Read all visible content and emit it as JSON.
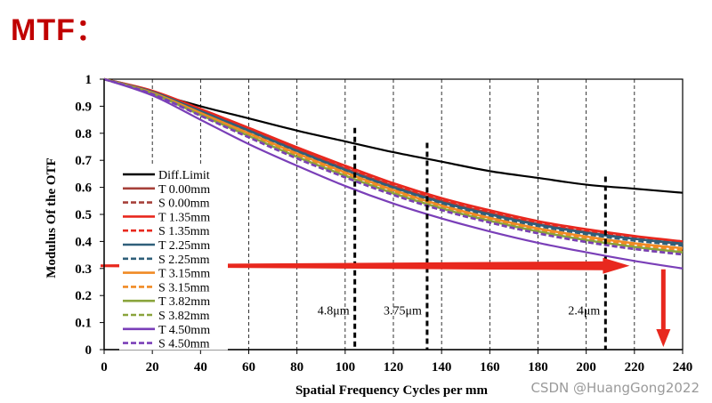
{
  "page": {
    "heading": "MTF：",
    "watermark": "CSDN @HuangGong2022"
  },
  "chart_data": {
    "type": "line",
    "title": "",
    "xlabel": "Spatial Frequency Cycles per mm",
    "ylabel": "Modulus Of the OTF",
    "xlim": [
      0,
      240
    ],
    "ylim": [
      0,
      1
    ],
    "xticks": [
      0,
      20,
      40,
      60,
      80,
      100,
      120,
      140,
      160,
      180,
      200,
      220,
      240
    ],
    "yticks": [
      0,
      0.1,
      0.2,
      0.3,
      0.4,
      0.5,
      0.6,
      0.7,
      0.8,
      0.9,
      1
    ],
    "x": [
      0,
      20,
      40,
      60,
      80,
      100,
      120,
      140,
      160,
      180,
      200,
      220,
      240
    ],
    "grid": "dashed vertical",
    "legend_position": "left",
    "series": [
      {
        "name": "Diff.Limit",
        "color": "#000000",
        "dash": "solid",
        "values": [
          1,
          0.95,
          0.9,
          0.855,
          0.81,
          0.77,
          0.73,
          0.695,
          0.66,
          0.635,
          0.61,
          0.595,
          0.58
        ]
      },
      {
        "name": "T 0.00mm",
        "color": "#a6403a",
        "dash": "solid",
        "values": [
          1,
          0.955,
          0.885,
          0.815,
          0.74,
          0.67,
          0.605,
          0.55,
          0.505,
          0.465,
          0.435,
          0.41,
          0.39
        ]
      },
      {
        "name": "S 0.00mm",
        "color": "#a6403a",
        "dash": "dashed",
        "values": [
          1,
          0.955,
          0.885,
          0.815,
          0.74,
          0.67,
          0.605,
          0.55,
          0.505,
          0.465,
          0.435,
          0.41,
          0.39
        ]
      },
      {
        "name": "T 1.35mm",
        "color": "#e8281e",
        "dash": "solid",
        "values": [
          1,
          0.957,
          0.89,
          0.82,
          0.748,
          0.68,
          0.615,
          0.56,
          0.515,
          0.475,
          0.445,
          0.42,
          0.4
        ]
      },
      {
        "name": "S 1.35mm",
        "color": "#e8281e",
        "dash": "dashed",
        "values": [
          1,
          0.955,
          0.887,
          0.817,
          0.744,
          0.675,
          0.61,
          0.555,
          0.51,
          0.47,
          0.44,
          0.415,
          0.395
        ]
      },
      {
        "name": "T 2.25mm",
        "color": "#2f5f7a",
        "dash": "solid",
        "values": [
          1,
          0.953,
          0.882,
          0.81,
          0.735,
          0.665,
          0.6,
          0.545,
          0.5,
          0.462,
          0.432,
          0.41,
          0.392
        ]
      },
      {
        "name": "S 2.25mm",
        "color": "#2f5f7a",
        "dash": "dashed",
        "values": [
          1,
          0.952,
          0.878,
          0.805,
          0.73,
          0.66,
          0.595,
          0.54,
          0.495,
          0.457,
          0.427,
          0.403,
          0.385
        ]
      },
      {
        "name": "T 3.15mm",
        "color": "#f08a24",
        "dash": "solid",
        "values": [
          1,
          0.95,
          0.875,
          0.8,
          0.725,
          0.655,
          0.59,
          0.533,
          0.487,
          0.448,
          0.418,
          0.393,
          0.375
        ]
      },
      {
        "name": "S 3.15mm",
        "color": "#f08a24",
        "dash": "dashed",
        "values": [
          1,
          0.949,
          0.872,
          0.797,
          0.72,
          0.65,
          0.585,
          0.528,
          0.482,
          0.443,
          0.412,
          0.387,
          0.368
        ]
      },
      {
        "name": "T 3.82mm",
        "color": "#8aa43c",
        "dash": "solid",
        "values": [
          1,
          0.947,
          0.868,
          0.79,
          0.713,
          0.643,
          0.578,
          0.522,
          0.476,
          0.437,
          0.405,
          0.38,
          0.36
        ]
      },
      {
        "name": "S 3.82mm",
        "color": "#8aa43c",
        "dash": "dashed",
        "values": [
          1,
          0.945,
          0.865,
          0.785,
          0.707,
          0.637,
          0.572,
          0.516,
          0.47,
          0.43,
          0.398,
          0.372,
          0.352
        ]
      },
      {
        "name": "T 4.50mm",
        "color": "#7a3fb8",
        "dash": "solid",
        "values": [
          1,
          0.94,
          0.85,
          0.76,
          0.68,
          0.605,
          0.54,
          0.485,
          0.437,
          0.395,
          0.36,
          0.328,
          0.3
        ]
      },
      {
        "name": "S 4.50mm",
        "color": "#7a3fb8",
        "dash": "dashed",
        "values": [
          1,
          0.945,
          0.865,
          0.785,
          0.707,
          0.637,
          0.572,
          0.516,
          0.47,
          0.43,
          0.398,
          0.372,
          0.352
        ]
      }
    ],
    "markers": [
      {
        "label": "4.8μm",
        "x": 104,
        "y_top": 0.82
      },
      {
        "label": "3.75μm",
        "x": 134,
        "y_top": 0.765
      },
      {
        "label": "2.4μm",
        "x": 208,
        "y_top": 0.64
      }
    ],
    "annotations": {
      "arrow_y": 0.31,
      "arrow_x_end": 218,
      "down_arrow_x": 232,
      "arrow_color": "#e8281e"
    }
  }
}
